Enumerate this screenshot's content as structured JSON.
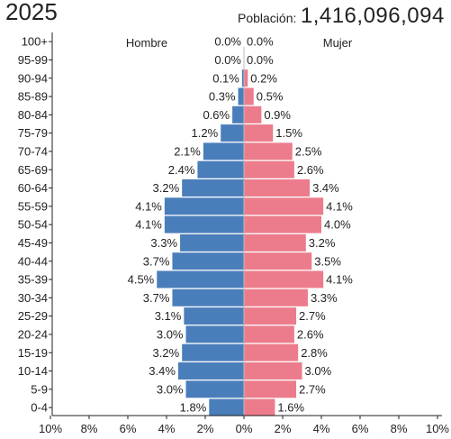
{
  "header": {
    "year": "2025",
    "population_label": "Población:",
    "population_value": "1,416,096,094"
  },
  "colors": {
    "male": "#4a7ebb",
    "female": "#ec7c8c"
  },
  "chart_data": {
    "type": "bar",
    "orientation": "horizontal-population-pyramid",
    "categories": [
      "100+",
      "95-99",
      "90-94",
      "85-89",
      "80-84",
      "75-79",
      "70-74",
      "65-69",
      "60-64",
      "55-59",
      "50-54",
      "45-49",
      "40-44",
      "35-39",
      "30-34",
      "25-29",
      "20-24",
      "15-19",
      "10-14",
      "5-9",
      "0-4"
    ],
    "series": [
      {
        "name": "Hombre",
        "side": "left",
        "values": [
          0.0,
          0.0,
          0.1,
          0.3,
          0.6,
          1.2,
          2.1,
          2.4,
          3.2,
          4.1,
          4.1,
          3.3,
          3.7,
          4.5,
          3.7,
          3.1,
          3.0,
          3.2,
          3.4,
          3.0,
          1.8
        ]
      },
      {
        "name": "Mujer",
        "side": "right",
        "values": [
          0.0,
          0.0,
          0.2,
          0.5,
          0.9,
          1.5,
          2.5,
          2.6,
          3.4,
          4.1,
          4.0,
          3.2,
          3.5,
          4.1,
          3.3,
          2.7,
          2.6,
          2.8,
          3.0,
          2.7,
          1.6
        ]
      }
    ],
    "xlim": [
      -10,
      10
    ],
    "xticks": [
      "10%",
      "8%",
      "6%",
      "4%",
      "2%",
      "0%",
      "2%",
      "4%",
      "6%",
      "8%",
      "10%"
    ],
    "value_suffix": "%"
  }
}
